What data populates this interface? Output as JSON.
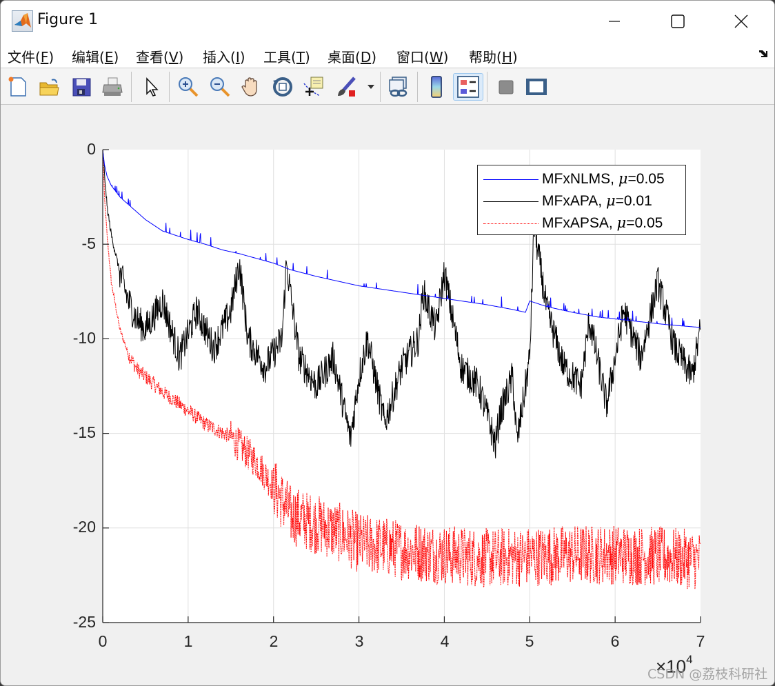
{
  "window": {
    "title": "Figure 1",
    "controls": {
      "minimize": "minimize",
      "maximize": "maximize",
      "close": "close"
    }
  },
  "menubar": {
    "items": [
      {
        "label": "文件",
        "key": "F"
      },
      {
        "label": "编辑",
        "key": "E"
      },
      {
        "label": "查看",
        "key": "V"
      },
      {
        "label": "插入",
        "key": "I"
      },
      {
        "label": "工具",
        "key": "T"
      },
      {
        "label": "桌面",
        "key": "D"
      },
      {
        "label": "窗口",
        "key": "W"
      },
      {
        "label": "帮助",
        "key": "H"
      }
    ],
    "dock_icon": "undock-arrow-icon"
  },
  "toolbar": {
    "buttons": [
      {
        "name": "new-figure",
        "icon": "new-file-icon"
      },
      {
        "name": "open-file",
        "icon": "folder-open-icon"
      },
      {
        "name": "save",
        "icon": "floppy-disk-icon"
      },
      {
        "name": "print",
        "icon": "printer-icon"
      },
      {
        "name": "edit-plot",
        "icon": "cursor-arrow-icon"
      },
      {
        "name": "zoom-in",
        "icon": "zoom-in-icon"
      },
      {
        "name": "zoom-out",
        "icon": "zoom-out-icon"
      },
      {
        "name": "pan",
        "icon": "hand-icon"
      },
      {
        "name": "rotate-3d",
        "icon": "rotate-3d-icon"
      },
      {
        "name": "data-cursor",
        "icon": "data-tip-icon"
      },
      {
        "name": "brush",
        "icon": "brush-icon"
      },
      {
        "name": "link-plot",
        "icon": "link-icon"
      },
      {
        "name": "insert-colorbar",
        "icon": "colorbar-icon"
      },
      {
        "name": "insert-legend",
        "icon": "legend-icon",
        "active": true
      },
      {
        "name": "hide-plot-tools",
        "icon": "hide-tools-icon"
      },
      {
        "name": "show-plot-tools",
        "icon": "show-tools-icon"
      }
    ]
  },
  "watermark": "CSDN @荔枝科研社",
  "chart_data": {
    "type": "line",
    "title": "",
    "xlabel": "",
    "ylabel": "",
    "x_exponent_label": "×10^4",
    "xlim": [
      0,
      7
    ],
    "ylim": [
      -25,
      0
    ],
    "x_ticks": [
      "0",
      "1",
      "2",
      "3",
      "4",
      "5",
      "6",
      "7"
    ],
    "y_ticks": [
      "0",
      "-5",
      "-10",
      "-15",
      "-20",
      "-25"
    ],
    "grid": true,
    "legend_position": "northeast",
    "x_units_note": "x values in units of 10^4 iterations",
    "series": [
      {
        "name": "MFxNLMS, μ=0.05",
        "label_text": "MFxNLMS, ",
        "mu": "=0.05",
        "color": "#0000ff",
        "style": "solid",
        "x": [
          0,
          0.02,
          0.05,
          0.1,
          0.2,
          0.3,
          0.4,
          0.5,
          0.6,
          0.7,
          0.8,
          1.0,
          1.2,
          1.4,
          1.6,
          1.8,
          2.0,
          2.2,
          2.5,
          2.8,
          3.0,
          3.3,
          3.6,
          3.9,
          4.2,
          4.5,
          4.8,
          4.95,
          5.0,
          5.2,
          5.5,
          5.8,
          6.0,
          6.3,
          6.6,
          7.0
        ],
        "values": [
          0,
          -0.8,
          -1.4,
          -1.9,
          -2.5,
          -2.9,
          -3.3,
          -3.7,
          -4.0,
          -4.3,
          -4.45,
          -4.75,
          -5.0,
          -5.3,
          -5.5,
          -5.75,
          -6.0,
          -6.35,
          -6.7,
          -7.0,
          -7.2,
          -7.4,
          -7.6,
          -7.8,
          -8.0,
          -8.2,
          -8.45,
          -8.6,
          -8.0,
          -8.3,
          -8.6,
          -8.85,
          -8.95,
          -9.1,
          -9.25,
          -9.4
        ]
      },
      {
        "name": "MFxAPA, μ=0.01",
        "label_text": "MFxAPA, ",
        "mu": "=0.01",
        "color": "#000000",
        "style": "solid",
        "x": [
          0,
          0.05,
          0.1,
          0.2,
          0.3,
          0.4,
          0.5,
          0.7,
          0.9,
          1.1,
          1.3,
          1.5,
          1.6,
          1.7,
          1.9,
          2.1,
          2.15,
          2.3,
          2.5,
          2.7,
          2.9,
          3.0,
          3.1,
          3.3,
          3.5,
          3.7,
          3.75,
          3.9,
          4.0,
          4.2,
          4.4,
          4.6,
          4.65,
          4.8,
          4.85,
          5.0,
          5.05,
          5.2,
          5.4,
          5.6,
          5.7,
          5.9,
          6.1,
          6.3,
          6.5,
          6.7,
          6.9,
          7.0
        ],
        "values": [
          0,
          -3.0,
          -4.5,
          -6.5,
          -8.0,
          -9.0,
          -9.5,
          -8.0,
          -11.0,
          -8.5,
          -10.5,
          -8.5,
          -6.0,
          -10.0,
          -11.5,
          -10.0,
          -6.0,
          -11.0,
          -12.5,
          -11.0,
          -15.3,
          -12.0,
          -10.0,
          -14.5,
          -11.5,
          -10.0,
          -7.5,
          -9.5,
          -6.5,
          -11.5,
          -12.5,
          -15.6,
          -14.0,
          -12.0,
          -15.5,
          -11.0,
          -4.0,
          -8.5,
          -11.5,
          -12.5,
          -9.0,
          -13.5,
          -8.5,
          -11.0,
          -7.0,
          -10.5,
          -12.0,
          -9.5
        ]
      },
      {
        "name": "MFxAPSA, μ=0.05",
        "label_text": "MFxAPSA, ",
        "mu": "=0.05",
        "color": "#ff0000",
        "style": "dotted",
        "x": [
          0,
          0.02,
          0.05,
          0.1,
          0.2,
          0.3,
          0.4,
          0.5,
          0.7,
          1.0,
          1.2,
          1.5,
          1.8,
          2.0,
          2.2,
          2.5,
          2.8,
          3.0,
          3.3,
          3.6,
          4.0,
          4.5,
          5.0,
          5.5,
          6.0,
          6.5,
          7.0
        ],
        "values": [
          0,
          -2.5,
          -4.5,
          -7.0,
          -9.5,
          -10.8,
          -11.6,
          -12.0,
          -12.8,
          -13.8,
          -14.5,
          -15.2,
          -16.5,
          -17.8,
          -19.3,
          -19.8,
          -20.3,
          -20.8,
          -21.0,
          -21.2,
          -21.4,
          -21.6,
          -21.5,
          -21.4,
          -21.4,
          -21.5,
          -21.7
        ],
        "noise_band_after_x2": [
          -24.5,
          -17.5
        ]
      }
    ]
  }
}
